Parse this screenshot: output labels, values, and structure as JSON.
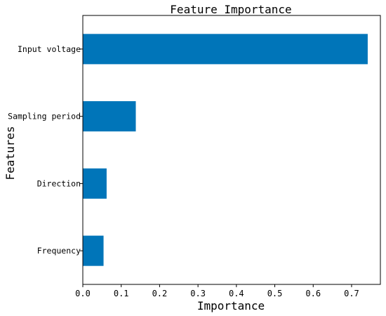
{
  "chart_data": {
    "type": "bar",
    "orientation": "horizontal",
    "title": "Feature Importance",
    "xlabel": "Importance",
    "ylabel": "Features",
    "categories": [
      "Input voltage",
      "Sampling period",
      "Direction",
      "Frequency"
    ],
    "values": [
      0.742,
      0.138,
      0.062,
      0.054
    ],
    "xlim": [
      0,
      0.775
    ],
    "xticks": [
      "0.0",
      "0.1",
      "0.2",
      "0.3",
      "0.4",
      "0.5",
      "0.6",
      "0.7"
    ],
    "grid": false,
    "bar_color": "#0075B9"
  }
}
